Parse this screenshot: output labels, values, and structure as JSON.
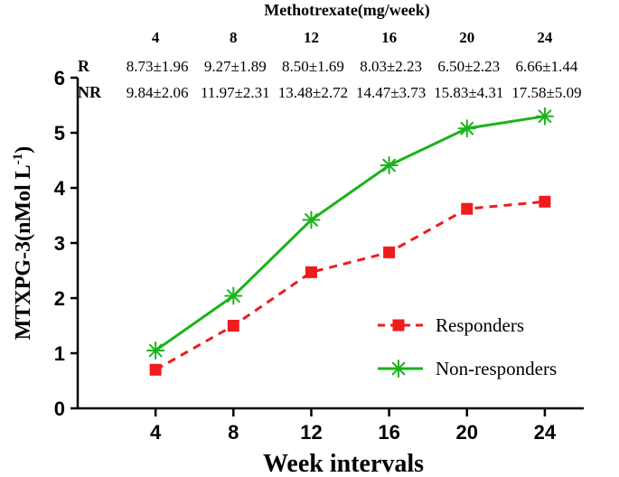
{
  "chart_data": {
    "type": "line",
    "title": "Methotrexate(mg/week)",
    "xlabel": "Week intervals",
    "ylabel": "MTXPG-3(nMol L",
    "ylabel_sup": "-1",
    "ylabel_close": ")",
    "categories": [
      "4",
      "8",
      "12",
      "16",
      "20",
      "24"
    ],
    "x": [
      4,
      8,
      12,
      16,
      20,
      24
    ],
    "xlim": [
      0,
      26
    ],
    "ylim": [
      0,
      6
    ],
    "yticks": [
      "0",
      "1",
      "2",
      "3",
      "4",
      "5",
      "6"
    ],
    "grid": false,
    "legend_position": "bottom-right",
    "dose_table": {
      "header": [
        "4",
        "8",
        "12",
        "16",
        "20",
        "24"
      ],
      "rows": [
        {
          "label": "R",
          "values": [
            "8.73±1.96",
            "9.27±1.89",
            "8.50±1.69",
            "8.03±2.23",
            "6.50±2.23",
            "6.66±1.44"
          ]
        },
        {
          "label": "NR",
          "values": [
            "9.84±2.06",
            "11.97±2.31",
            "13.48±2.72",
            "14.47±3.73",
            "15.83±4.31",
            "17.58±5.09"
          ]
        }
      ]
    },
    "series": [
      {
        "name": "Responders",
        "values": [
          0.7,
          1.5,
          2.47,
          2.83,
          3.62,
          3.75
        ],
        "color": "#ee1c1c",
        "dash": true,
        "marker": "square"
      },
      {
        "name": "Non-responders",
        "values": [
          1.05,
          2.04,
          3.42,
          4.41,
          5.08,
          5.3
        ],
        "color": "#1ab31a",
        "dash": false,
        "marker": "asterisk"
      }
    ]
  }
}
